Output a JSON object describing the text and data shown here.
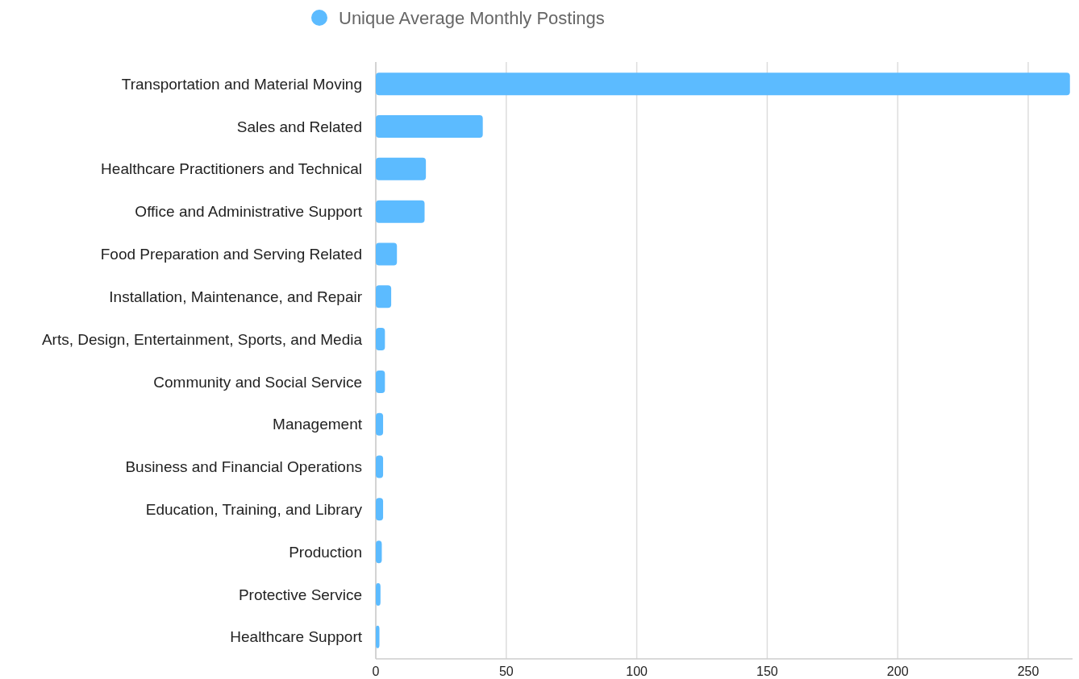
{
  "chart_data": {
    "type": "bar",
    "orientation": "horizontal",
    "categories": [
      "Transportation and Material Moving",
      "Sales and Related",
      "Healthcare Practitioners and Technical",
      "Office and Administrative Support",
      "Food Preparation and Serving Related",
      "Installation, Maintenance, and Repair",
      "Arts, Design, Entertainment, Sports, and Media",
      "Community and Social Service",
      "Management",
      "Business and Financial Operations",
      "Education, Training, and Library",
      "Production",
      "Protective Service",
      "Healthcare Support"
    ],
    "series": [
      {
        "name": "Unique Average Monthly Postings",
        "color": "#5cbbff",
        "values": [
          266,
          41,
          19.2,
          18.7,
          8.1,
          5.9,
          3.5,
          3.5,
          2.8,
          2.8,
          2.8,
          2.3,
          1.8,
          1.4
        ]
      }
    ],
    "xlim": [
      0,
      267
    ],
    "xticks": [
      0,
      50,
      100,
      150,
      200,
      250
    ],
    "grid": "x",
    "legend": "top"
  }
}
